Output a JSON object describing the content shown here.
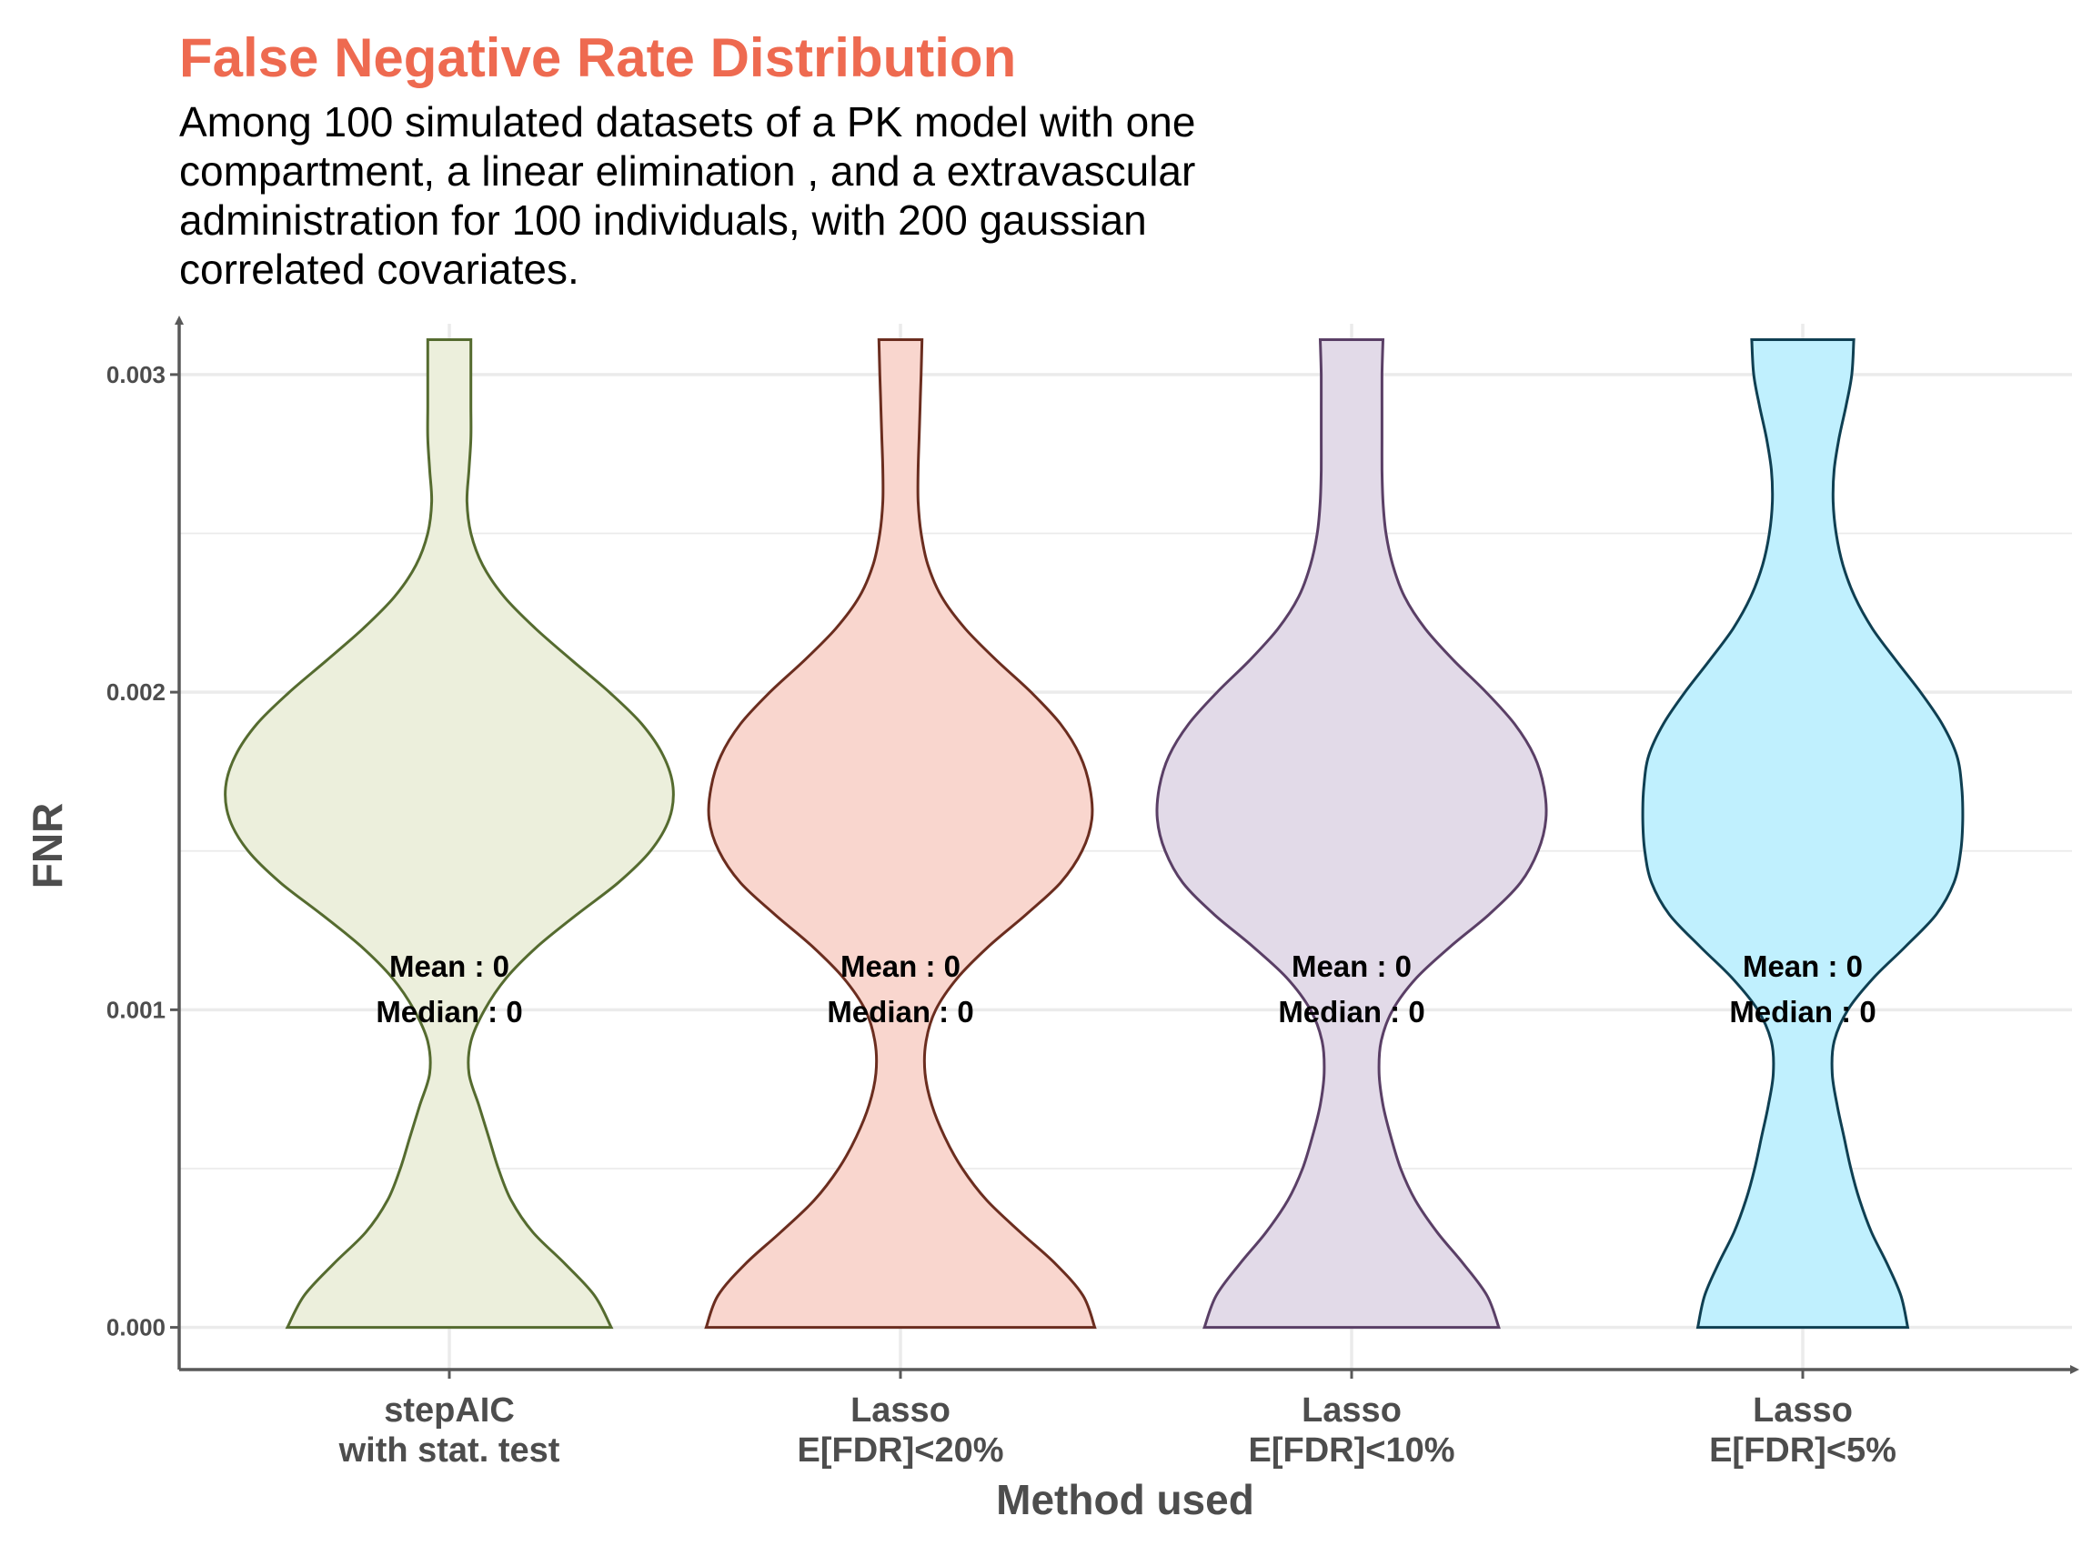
{
  "header": {
    "title": "False Negative Rate Distribution",
    "subtitle": "Among 100 simulated datasets of a PK model with one\ncompartment, a linear elimination , and a extravascular\nadministration for 100 individuals, with 200 gaussian\ncorrelated covariates."
  },
  "colors": {
    "title": "#EE6A50",
    "axis": "#595959",
    "grid": "#ebebeb"
  },
  "chart_data": {
    "type": "violin",
    "title": "False Negative Rate Distribution",
    "xlabel": "Method used",
    "ylabel": "FNR",
    "ylim": [
      -0.00013,
      0.00316
    ],
    "yticks": [
      "0.000",
      "0.001",
      "0.002",
      "0.003"
    ],
    "grid": true,
    "categories": [
      "stepAIC\nwith stat. test",
      "Lasso\nE[FDR]<20%",
      "Lasso\nE[FDR]<10%",
      "Lasso\nE[FDR]<5%"
    ],
    "series": [
      {
        "stroke": "#556B2F",
        "fill": "#ECEFDC",
        "profile": [
          [
            0.0,
            0.165
          ],
          [
            0.0001,
            0.148
          ],
          [
            0.0002,
            0.118
          ],
          [
            0.0003,
            0.085
          ],
          [
            0.0004,
            0.063
          ],
          [
            0.0005,
            0.05
          ],
          [
            0.0006,
            0.04
          ],
          [
            0.0007,
            0.03
          ],
          [
            0.0008,
            0.02
          ],
          [
            0.0009,
            0.022
          ],
          [
            0.001,
            0.036
          ],
          [
            0.0011,
            0.058
          ],
          [
            0.0012,
            0.09
          ],
          [
            0.0013,
            0.13
          ],
          [
            0.0014,
            0.172
          ],
          [
            0.0015,
            0.205
          ],
          [
            0.0016,
            0.224
          ],
          [
            0.0017,
            0.228
          ],
          [
            0.0018,
            0.218
          ],
          [
            0.0019,
            0.196
          ],
          [
            0.002,
            0.163
          ],
          [
            0.0021,
            0.125
          ],
          [
            0.0022,
            0.088
          ],
          [
            0.0023,
            0.056
          ],
          [
            0.0024,
            0.034
          ],
          [
            0.0025,
            0.022
          ],
          [
            0.0026,
            0.018
          ],
          [
            0.0027,
            0.02
          ],
          [
            0.0028,
            0.022
          ],
          [
            0.0029,
            0.022
          ],
          [
            0.003,
            0.022
          ],
          [
            0.00311,
            0.022
          ]
        ],
        "stats": {
          "mean": "Mean : 0",
          "median": "Median : 0"
        }
      },
      {
        "stroke": "#6B2D1F",
        "fill": "#F9D6CE",
        "profile": [
          [
            0.0,
            0.198
          ],
          [
            0.0001,
            0.186
          ],
          [
            0.0002,
            0.158
          ],
          [
            0.0003,
            0.122
          ],
          [
            0.0004,
            0.088
          ],
          [
            0.0005,
            0.063
          ],
          [
            0.0006,
            0.045
          ],
          [
            0.0007,
            0.032
          ],
          [
            0.0008,
            0.025
          ],
          [
            0.0009,
            0.026
          ],
          [
            0.001,
            0.036
          ],
          [
            0.0011,
            0.058
          ],
          [
            0.0012,
            0.09
          ],
          [
            0.0013,
            0.128
          ],
          [
            0.0014,
            0.163
          ],
          [
            0.0015,
            0.185
          ],
          [
            0.0016,
            0.195
          ],
          [
            0.0017,
            0.193
          ],
          [
            0.0018,
            0.183
          ],
          [
            0.0019,
            0.163
          ],
          [
            0.002,
            0.133
          ],
          [
            0.0021,
            0.098
          ],
          [
            0.0022,
            0.066
          ],
          [
            0.0023,
            0.042
          ],
          [
            0.0024,
            0.028
          ],
          [
            0.0025,
            0.021
          ],
          [
            0.0026,
            0.018
          ],
          [
            0.0027,
            0.018
          ],
          [
            0.0028,
            0.019
          ],
          [
            0.0029,
            0.02
          ],
          [
            0.003,
            0.021
          ],
          [
            0.00311,
            0.022
          ]
        ],
        "stats": {
          "mean": "Mean : 0",
          "median": "Median : 0"
        }
      },
      {
        "stroke": "#5A3F66",
        "fill": "#E2DAE8",
        "profile": [
          [
            0.0,
            0.15
          ],
          [
            0.0001,
            0.138
          ],
          [
            0.0002,
            0.114
          ],
          [
            0.0003,
            0.087
          ],
          [
            0.0004,
            0.065
          ],
          [
            0.0005,
            0.05
          ],
          [
            0.0006,
            0.04
          ],
          [
            0.0007,
            0.032
          ],
          [
            0.0008,
            0.028
          ],
          [
            0.0009,
            0.03
          ],
          [
            0.001,
            0.042
          ],
          [
            0.0011,
            0.066
          ],
          [
            0.0012,
            0.101
          ],
          [
            0.0013,
            0.14
          ],
          [
            0.0014,
            0.172
          ],
          [
            0.0015,
            0.19
          ],
          [
            0.0016,
            0.198
          ],
          [
            0.0017,
            0.196
          ],
          [
            0.0018,
            0.186
          ],
          [
            0.0019,
            0.166
          ],
          [
            0.002,
            0.137
          ],
          [
            0.0021,
            0.104
          ],
          [
            0.0022,
            0.075
          ],
          [
            0.0023,
            0.054
          ],
          [
            0.0024,
            0.042
          ],
          [
            0.0025,
            0.035
          ],
          [
            0.0026,
            0.032
          ],
          [
            0.0027,
            0.031
          ],
          [
            0.0028,
            0.031
          ],
          [
            0.0029,
            0.031
          ],
          [
            0.003,
            0.031
          ],
          [
            0.00311,
            0.032
          ]
        ],
        "stats": {
          "mean": "Mean : 0",
          "median": "Median : 0"
        }
      },
      {
        "stroke": "#0F3F52",
        "fill": "#C0F0FE",
        "profile": [
          [
            0.0,
            0.107
          ],
          [
            0.0001,
            0.1
          ],
          [
            0.0002,
            0.086
          ],
          [
            0.0003,
            0.07
          ],
          [
            0.0004,
            0.058
          ],
          [
            0.0005,
            0.049
          ],
          [
            0.0006,
            0.042
          ],
          [
            0.0007,
            0.035
          ],
          [
            0.0008,
            0.03
          ],
          [
            0.0009,
            0.032
          ],
          [
            0.001,
            0.046
          ],
          [
            0.0011,
            0.072
          ],
          [
            0.0012,
            0.105
          ],
          [
            0.0013,
            0.136
          ],
          [
            0.0014,
            0.154
          ],
          [
            0.0015,
            0.161
          ],
          [
            0.0016,
            0.163
          ],
          [
            0.0017,
            0.162
          ],
          [
            0.0018,
            0.157
          ],
          [
            0.0019,
            0.142
          ],
          [
            0.002,
            0.12
          ],
          [
            0.0021,
            0.095
          ],
          [
            0.0022,
            0.071
          ],
          [
            0.0023,
            0.053
          ],
          [
            0.0024,
            0.041
          ],
          [
            0.0025,
            0.034
          ],
          [
            0.0026,
            0.031
          ],
          [
            0.0027,
            0.032
          ],
          [
            0.0028,
            0.037
          ],
          [
            0.0029,
            0.044
          ],
          [
            0.003,
            0.05
          ],
          [
            0.00311,
            0.052
          ]
        ],
        "stats": {
          "mean": "Mean : 0",
          "median": "Median : 0"
        }
      }
    ]
  }
}
